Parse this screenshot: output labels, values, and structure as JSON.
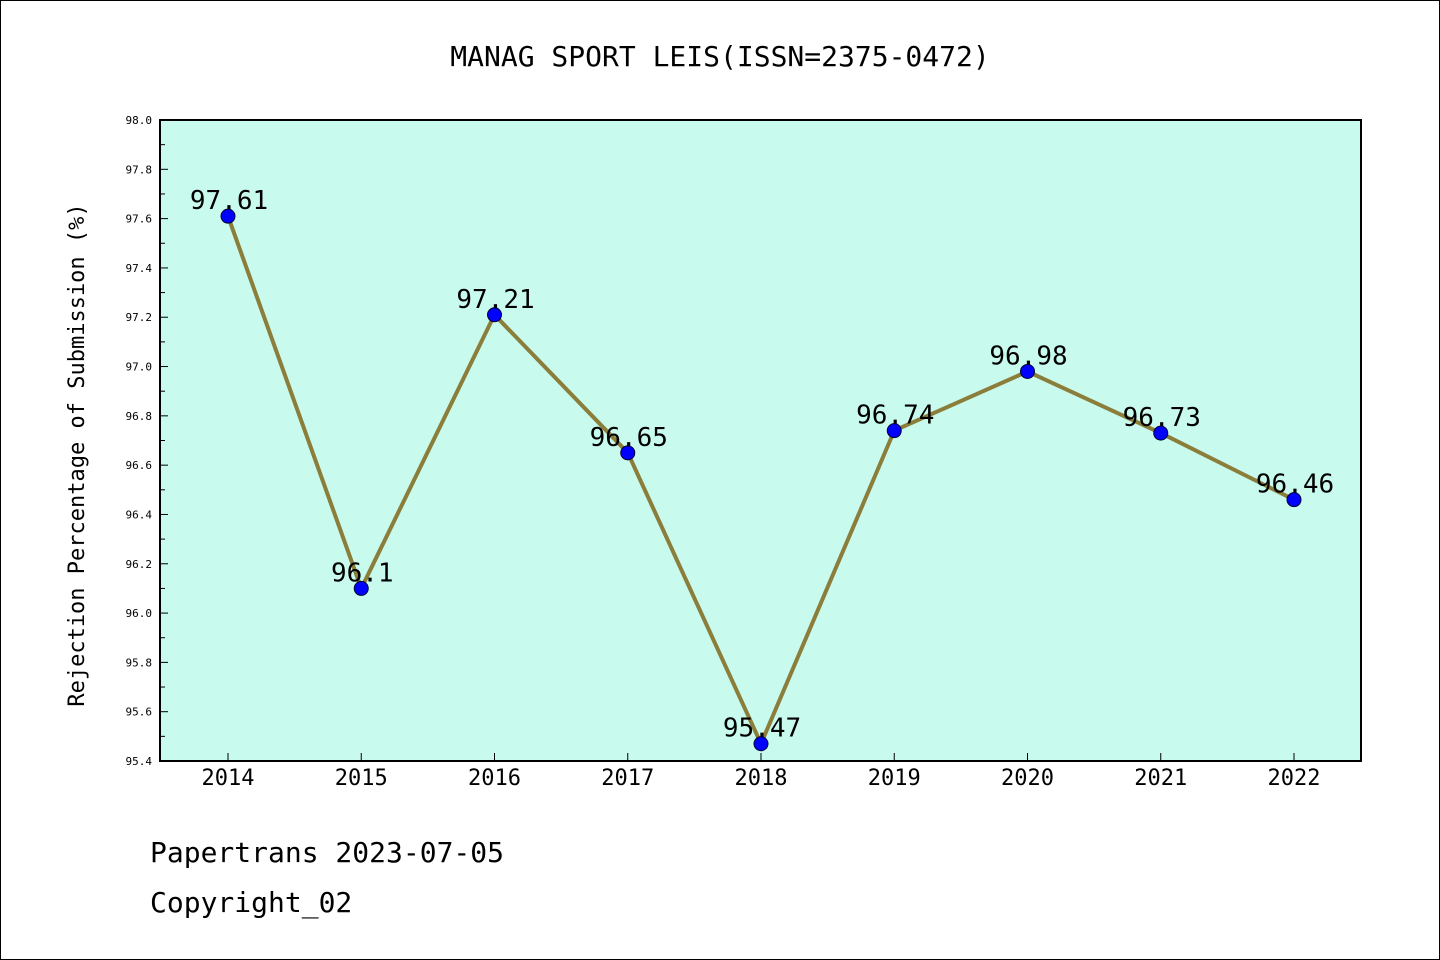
{
  "chart_data": {
    "type": "line",
    "title": "MANAG SPORT LEIS(ISSN=2375-0472)",
    "xlabel": "",
    "ylabel": "Rejection Percentage of Submission (%)",
    "categories": [
      "2014",
      "2015",
      "2016",
      "2017",
      "2018",
      "2019",
      "2020",
      "2021",
      "2022"
    ],
    "values": [
      97.61,
      96.1,
      97.21,
      96.65,
      95.47,
      96.74,
      96.98,
      96.73,
      96.46
    ],
    "data_labels": [
      "97.61",
      "96.1",
      "97.21",
      "96.65",
      "95.47",
      "96.74",
      "96.98",
      "96.73",
      "96.46"
    ],
    "ylim": [
      95.4,
      98.0
    ],
    "y_ticks": [
      "95.4",
      "95.6",
      "95.8",
      "96.0",
      "96.2",
      "96.4",
      "96.6",
      "96.8",
      "97.0",
      "97.2",
      "97.4",
      "97.6",
      "97.8",
      "98.0"
    ],
    "grid": false,
    "colors": {
      "plot_background": "#c8fbee",
      "line": "#8b7d3a",
      "marker": "#0000ff"
    }
  },
  "footer": {
    "source": "Papertrans 2023-07-05",
    "copyright": "Copyright_02"
  }
}
